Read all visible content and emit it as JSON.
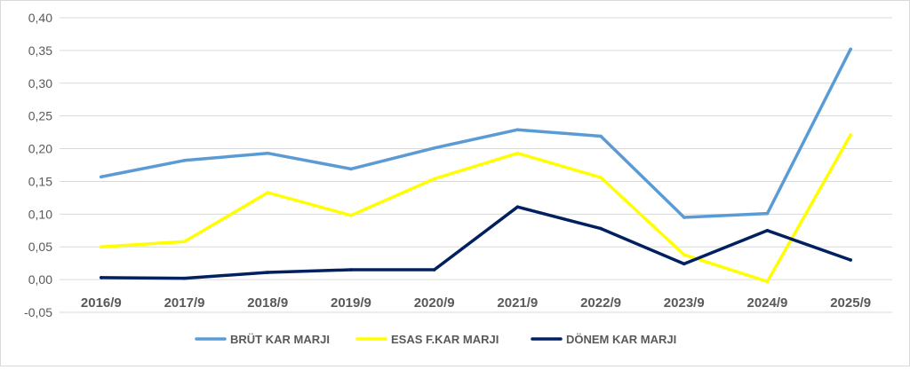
{
  "chart_data": {
    "type": "line",
    "title": "",
    "xlabel": "",
    "ylabel": "",
    "categories": [
      "2016/9",
      "2017/9",
      "2018/9",
      "2019/9",
      "2020/9",
      "2021/9",
      "2022/9",
      "2023/9",
      "2024/9",
      "2025/9"
    ],
    "ylim": [
      -0.05,
      0.4
    ],
    "yticks": [
      "0,40",
      "0,35",
      "0,30",
      "0,25",
      "0,20",
      "0,15",
      "0,10",
      "0,05",
      "0,00",
      "-0,05"
    ],
    "ytick_values": [
      0.4,
      0.35,
      0.3,
      0.25,
      0.2,
      0.15,
      0.1,
      0.05,
      0.0,
      -0.05
    ],
    "grid": true,
    "legend_position": "bottom",
    "series": [
      {
        "name": "BRÜT KAR MARJI",
        "color": "#5B9BD5",
        "values": [
          0.157,
          0.182,
          0.193,
          0.169,
          0.201,
          0.229,
          0.219,
          0.095,
          0.101,
          0.352
        ]
      },
      {
        "name": "ESAS F.KAR MARJI",
        "color": "#FFFF00",
        "values": [
          0.05,
          0.058,
          0.133,
          0.098,
          0.154,
          0.193,
          0.156,
          0.038,
          -0.003,
          0.221
        ]
      },
      {
        "name": "DÖNEM KAR MARJI",
        "color": "#002060",
        "values": [
          0.003,
          0.002,
          0.011,
          0.015,
          0.015,
          0.111,
          0.078,
          0.024,
          0.075,
          0.03
        ]
      }
    ]
  }
}
